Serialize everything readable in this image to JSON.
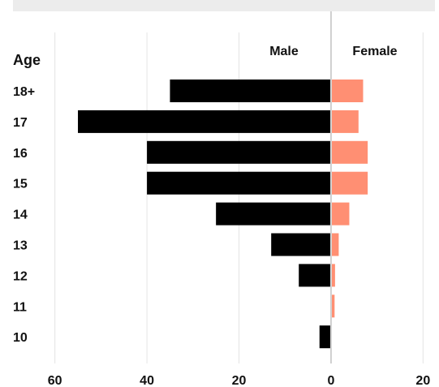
{
  "chart_data": {
    "type": "bar",
    "orientation": "horizontal-population-pyramid",
    "ylabel": "Age",
    "categories": [
      "18+",
      "17",
      "16",
      "15",
      "14",
      "13",
      "12",
      "11",
      "10"
    ],
    "series": [
      {
        "name": "Male",
        "values": [
          35,
          55,
          40,
          40,
          25,
          13,
          7,
          0,
          2.5
        ],
        "color": "#000000"
      },
      {
        "name": "Female",
        "values": [
          6.8,
          5.8,
          7.8,
          7.8,
          3.8,
          1.5,
          0.7,
          0.6,
          0
        ],
        "color": "#ff8f73"
      }
    ],
    "x_ticks": [
      {
        "value": -60,
        "label": "60"
      },
      {
        "value": -40,
        "label": "40"
      },
      {
        "value": -20,
        "label": "20"
      },
      {
        "value": 0,
        "label": "0"
      },
      {
        "value": 20,
        "label": "20"
      }
    ],
    "xlim": [
      -61,
      21
    ],
    "grid": true,
    "legend_placement": "top-center"
  }
}
